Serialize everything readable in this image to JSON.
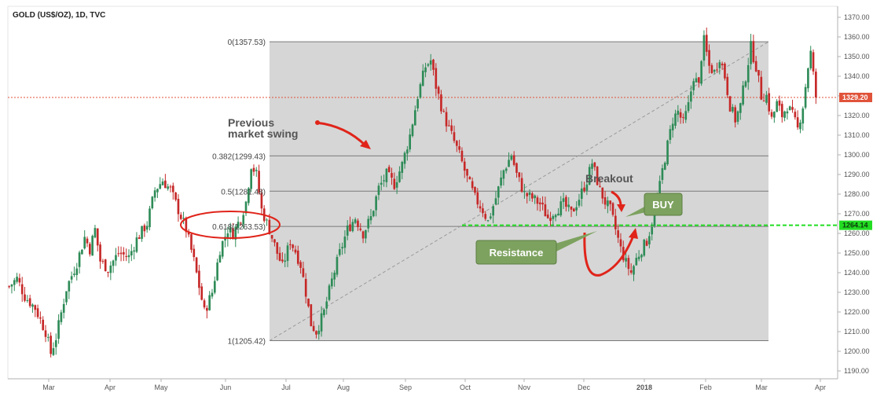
{
  "header": {
    "symbol_title": "GOLD (US$/OZ), 1D, TVC"
  },
  "price_tags": {
    "last_price": "1329.20",
    "line_price": "1264.14"
  },
  "annotations": {
    "swing_line1": "Previous",
    "swing_line2": "market swing",
    "breakout": "Breakout",
    "buy": "BUY",
    "resistance": "Resistance"
  },
  "fib_labels": [
    "0(1357.53)",
    "0.382(1299.43)",
    "0.5(1281.48)",
    "0.618(1263.53)",
    "1(1205.42)"
  ],
  "colors": {
    "background": "#ffffff",
    "fib_zone": "#d6d6d6",
    "candle_up": "#2e8b57",
    "candle_down": "#c62828",
    "last_price": "#e0533a",
    "green_line": "#22dd22",
    "callout_fill": "#7da25f",
    "annotation_red": "#e0241a"
  },
  "chart_data": {
    "type": "candlestick",
    "title": "GOLD (US$/OZ), 1D, TVC",
    "y_axis_side": "right",
    "ylim": [
      1185,
      1375
    ],
    "y_ticks": [
      1190,
      1200,
      1210,
      1220,
      1230,
      1240,
      1250,
      1260,
      1270,
      1280,
      1290,
      1300,
      1310,
      1320,
      1330,
      1340,
      1350,
      1360,
      1370
    ],
    "x_ticks": [
      "Mar",
      "Apr",
      "May",
      "Jun",
      "Jul",
      "Aug",
      "Sep",
      "Oct",
      "Nov",
      "Dec",
      "2018",
      "Feb",
      "Mar",
      "Apr"
    ],
    "last_price": 1329.2,
    "horizontal_line": 1264.14,
    "fibonacci": {
      "high": 1357.53,
      "low": 1205.42,
      "levels": [
        {
          "ratio": 0,
          "price": 1357.53
        },
        {
          "ratio": 0.382,
          "price": 1299.43
        },
        {
          "ratio": 0.5,
          "price": 1281.48
        },
        {
          "ratio": 0.618,
          "price": 1263.53
        },
        {
          "ratio": 1,
          "price": 1205.42
        }
      ]
    },
    "close_path": [
      [
        0,
        1233
      ],
      [
        3,
        1237
      ],
      [
        6,
        1228
      ],
      [
        10,
        1222
      ],
      [
        14,
        1210
      ],
      [
        16,
        1199
      ],
      [
        18,
        1207
      ],
      [
        22,
        1232
      ],
      [
        26,
        1245
      ],
      [
        29,
        1258
      ],
      [
        31,
        1252
      ],
      [
        33,
        1262
      ],
      [
        35,
        1246
      ],
      [
        38,
        1242
      ],
      [
        42,
        1250
      ],
      [
        46,
        1248
      ],
      [
        49,
        1257
      ],
      [
        53,
        1265
      ],
      [
        56,
        1282
      ],
      [
        59,
        1287
      ],
      [
        62,
        1282
      ],
      [
        65,
        1272
      ],
      [
        68,
        1262
      ],
      [
        71,
        1246
      ],
      [
        73,
        1233
      ],
      [
        75,
        1220
      ],
      [
        78,
        1230
      ],
      [
        81,
        1252
      ],
      [
        84,
        1262
      ],
      [
        86,
        1260
      ],
      [
        89,
        1268
      ],
      [
        91,
        1276
      ],
      [
        93,
        1295
      ],
      [
        95,
        1290
      ],
      [
        97,
        1272
      ],
      [
        100,
        1262
      ],
      [
        103,
        1250
      ],
      [
        105,
        1243
      ],
      [
        108,
        1256
      ],
      [
        110,
        1251
      ],
      [
        112,
        1244
      ],
      [
        114,
        1230
      ],
      [
        116,
        1214
      ],
      [
        118,
        1210
      ],
      [
        121,
        1220
      ],
      [
        124,
        1236
      ],
      [
        127,
        1250
      ],
      [
        130,
        1262
      ],
      [
        133,
        1268
      ],
      [
        136,
        1260
      ],
      [
        139,
        1268
      ],
      [
        142,
        1283
      ],
      [
        145,
        1290
      ],
      [
        148,
        1285
      ],
      [
        151,
        1295
      ],
      [
        154,
        1310
      ],
      [
        157,
        1330
      ],
      [
        160,
        1345
      ],
      [
        162,
        1348
      ],
      [
        164,
        1335
      ],
      [
        167,
        1320
      ],
      [
        170,
        1310
      ],
      [
        173,
        1300
      ],
      [
        176,
        1288
      ],
      [
        179,
        1278
      ],
      [
        182,
        1272
      ],
      [
        184,
        1266
      ],
      [
        187,
        1278
      ],
      [
        190,
        1292
      ],
      [
        193,
        1300
      ],
      [
        195,
        1290
      ],
      [
        198,
        1280
      ],
      [
        201,
        1278
      ],
      [
        204,
        1275
      ],
      [
        207,
        1268
      ],
      [
        210,
        1272
      ],
      [
        213,
        1275
      ],
      [
        216,
        1270
      ],
      [
        219,
        1278
      ],
      [
        222,
        1287
      ],
      [
        224,
        1296
      ],
      [
        227,
        1282
      ],
      [
        229,
        1276
      ],
      [
        231,
        1272
      ],
      [
        233,
        1262
      ],
      [
        235,
        1252
      ],
      [
        237,
        1245
      ],
      [
        239,
        1240
      ],
      [
        241,
        1247
      ],
      [
        243,
        1252
      ],
      [
        245,
        1256
      ],
      [
        247,
        1265
      ],
      [
        249,
        1276
      ],
      [
        251,
        1292
      ],
      [
        253,
        1305
      ],
      [
        255,
        1318
      ],
      [
        257,
        1322
      ],
      [
        259,
        1316
      ],
      [
        261,
        1325
      ],
      [
        263,
        1340
      ],
      [
        265,
        1335
      ],
      [
        266,
        1350
      ],
      [
        267,
        1358
      ],
      [
        269,
        1345
      ],
      [
        271,
        1342
      ],
      [
        273,
        1350
      ],
      [
        275,
        1340
      ],
      [
        277,
        1325
      ],
      [
        279,
        1318
      ],
      [
        281,
        1325
      ],
      [
        283,
        1340
      ],
      [
        285,
        1355
      ],
      [
        287,
        1345
      ],
      [
        289,
        1330
      ],
      [
        291,
        1330
      ],
      [
        293,
        1318
      ],
      [
        295,
        1326
      ],
      [
        297,
        1320
      ],
      [
        299,
        1325
      ],
      [
        301,
        1320
      ],
      [
        303,
        1313
      ],
      [
        305,
        1325
      ],
      [
        307,
        1345
      ],
      [
        308,
        1352
      ],
      [
        310,
        1329.2
      ]
    ]
  }
}
